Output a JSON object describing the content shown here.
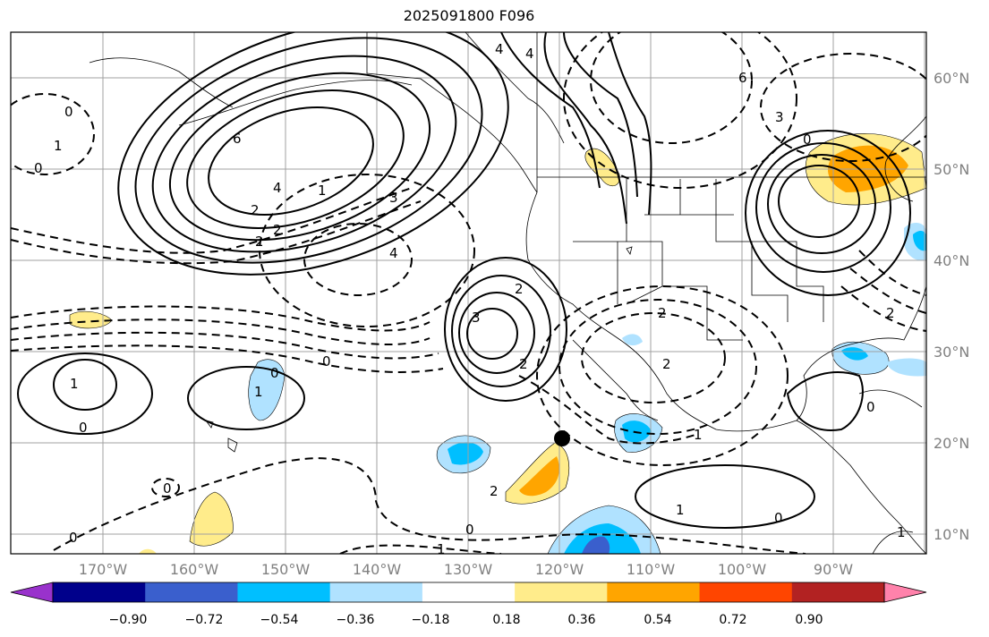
{
  "title": "2025091800 F096",
  "map": {
    "lat_labels": [
      "60°N",
      "50°N",
      "40°N",
      "30°N",
      "20°N",
      "10°N"
    ],
    "lon_labels": [
      "170°W",
      "160°W",
      "150°W",
      "140°W",
      "130°W",
      "120°W",
      "110°W",
      "100°W",
      "90°W"
    ],
    "contour_labels": [
      "0",
      "1",
      "0",
      "6",
      "4",
      "2",
      "2",
      "1",
      "2",
      "3",
      "4",
      "3",
      "2",
      "2",
      "0",
      "1",
      "0",
      "0",
      "1",
      "0",
      "0",
      "0",
      "1",
      "1",
      "2",
      "1",
      "0",
      "6",
      "0",
      "3",
      "4",
      "2",
      "4",
      "2",
      "0",
      "1",
      "2"
    ]
  },
  "colorbar": {
    "tick_labels": [
      "−0.90",
      "−0.72",
      "−0.54",
      "−0.36",
      "−0.18",
      "0.18",
      "0.36",
      "0.54",
      "0.72",
      "0.90"
    ],
    "colors": [
      "#9932cc",
      "#00008b",
      "#3a5fcd",
      "#00bfff",
      "#b0e2ff",
      "#ffffff",
      "#ffec8b",
      "#ffa500",
      "#ff4500",
      "#b22222",
      "#ff82ab"
    ]
  },
  "marker": {
    "label": "black-dot"
  }
}
